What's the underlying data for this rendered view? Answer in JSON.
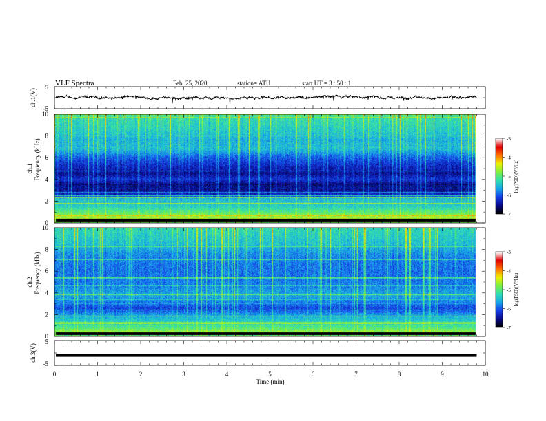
{
  "header": {
    "title": "VLF  Spectra",
    "date": "Feb. 25, 2020",
    "station": "station= ATH",
    "start_ut": "start  UT  =   3  : 50 : 1"
  },
  "colors": {
    "colormap": [
      "#000000",
      "#0a0a8c",
      "#1540e8",
      "#18a8e8",
      "#30e0b0",
      "#80f040",
      "#f0f000",
      "#ff7000",
      "#e00000",
      "#ffffff"
    ]
  },
  "chart_data": [
    {
      "type": "line",
      "panel": "ch1-waveform",
      "ylabel": "ch.1(V)",
      "yticks": [
        "5",
        "-5"
      ],
      "ylim": [
        -5,
        5
      ],
      "xlim": [
        0,
        10
      ],
      "data_end_min": 9.8
    },
    {
      "type": "heatmap",
      "panel": "ch1-spectrogram",
      "ylabel_top": "ch.1",
      "ylabel": "Frequency  (kHz)",
      "yticks": [
        "0",
        "2",
        "4",
        "6",
        "8",
        "10"
      ],
      "ylim": [
        0,
        10
      ],
      "xlim": [
        0,
        10
      ],
      "data_end_min": 9.8,
      "colorbar": {
        "label": "log(PSD)(V²/Hz)",
        "ticks": [
          "-3",
          "-4",
          "-5",
          "-6",
          "-7"
        ],
        "range": [
          -7,
          -3
        ]
      },
      "band_profile": [
        {
          "f": 0.0,
          "level": -5.0
        },
        {
          "f": 0.3,
          "level": -4.6
        },
        {
          "f": 0.8,
          "level": -4.9
        },
        {
          "f": 1.5,
          "level": -5.4
        },
        {
          "f": 2.2,
          "level": -5.6
        },
        {
          "f": 2.5,
          "level": -6.3
        },
        {
          "f": 3.0,
          "level": -6.6
        },
        {
          "f": 3.5,
          "level": -6.7
        },
        {
          "f": 4.0,
          "level": -6.3
        },
        {
          "f": 4.5,
          "level": -6.6
        },
        {
          "f": 5.2,
          "level": -6.4
        },
        {
          "f": 6.0,
          "level": -6.1
        },
        {
          "f": 6.8,
          "level": -5.6
        },
        {
          "f": 7.5,
          "level": -5.7
        },
        {
          "f": 8.5,
          "level": -5.5
        },
        {
          "f": 10.0,
          "level": -5.3
        }
      ]
    },
    {
      "type": "heatmap",
      "panel": "ch2-spectrogram",
      "ylabel_top": "ch.2",
      "ylabel": "Frequency  (kHz)",
      "yticks": [
        "0",
        "2",
        "4",
        "6",
        "8",
        "10"
      ],
      "ylim": [
        0,
        10
      ],
      "xlim": [
        0,
        10
      ],
      "data_end_min": 9.8,
      "colorbar": {
        "label": "log(PSD)(V²/Hz)",
        "ticks": [
          "-3",
          "-4",
          "-5",
          "-6",
          "-7"
        ],
        "range": [
          -7,
          -3
        ]
      },
      "band_profile": [
        {
          "f": 0.0,
          "level": -5.1
        },
        {
          "f": 0.5,
          "level": -4.8
        },
        {
          "f": 1.0,
          "level": -5.3
        },
        {
          "f": 1.8,
          "level": -5.6
        },
        {
          "f": 2.5,
          "level": -6.2
        },
        {
          "f": 3.0,
          "level": -6.0
        },
        {
          "f": 3.8,
          "level": -5.7
        },
        {
          "f": 4.5,
          "level": -5.9
        },
        {
          "f": 5.5,
          "level": -6.0
        },
        {
          "f": 6.5,
          "level": -6.0
        },
        {
          "f": 7.5,
          "level": -5.9
        },
        {
          "f": 8.5,
          "level": -5.6
        },
        {
          "f": 10.0,
          "level": -5.4
        }
      ]
    },
    {
      "type": "line",
      "panel": "ch3-waveform",
      "ylabel": "ch.3(V)",
      "yticks": [
        "5",
        "-5"
      ],
      "ylim": [
        -5,
        5
      ],
      "xlim": [
        0,
        10
      ],
      "constant_value": -1,
      "data_end_min": 9.8
    }
  ],
  "xaxis": {
    "label": "Time  (min)",
    "ticks": [
      "0",
      "1",
      "2",
      "3",
      "4",
      "5",
      "6",
      "7",
      "8",
      "9",
      "10"
    ]
  }
}
